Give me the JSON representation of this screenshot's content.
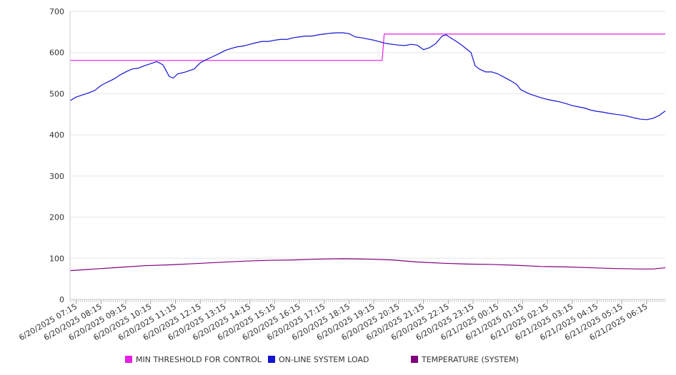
{
  "chart_data": {
    "type": "line",
    "title": "",
    "xlabel": "",
    "ylabel": "",
    "ylim": [
      0,
      700
    ],
    "y_ticks": [
      0,
      100,
      200,
      300,
      400,
      500,
      600,
      700
    ],
    "grid": "horizontal",
    "legend_position": "bottom",
    "x_range": [
      "6/20/2025 07:00",
      "6/21/2025 07:00"
    ],
    "x_tick_labels": [
      "6/20/2025 07:15",
      "6/20/2025 08:15",
      "6/20/2025 09:15",
      "6/20/2025 10:15",
      "6/20/2025 11:15",
      "6/20/2025 12:15",
      "6/20/2025 13:15",
      "6/20/2025 14:15",
      "6/20/2025 15:15",
      "6/20/2025 16:15",
      "6/20/2025 17:15",
      "6/20/2025 18:15",
      "6/20/2025 19:15",
      "6/20/2025 20:15",
      "6/20/2025 21:15",
      "6/20/2025 22:15",
      "6/20/2025 23:15",
      "6/21/2025 00:15",
      "6/21/2025 01:15",
      "6/21/2025 02:15",
      "6/21/2025 03:15",
      "6/21/2025 04:15",
      "6/21/2025 05:15",
      "6/21/2025 06:15"
    ],
    "series": [
      {
        "name": "MIN THRESHOLD FOR CONTROL",
        "color": "#e61ee6",
        "points": [
          [
            "6/20/2025 07:00",
            581
          ],
          [
            "6/20/2025 19:35",
            581
          ],
          [
            "6/20/2025 19:40",
            645
          ],
          [
            "6/21/2025 07:00",
            645
          ]
        ]
      },
      {
        "name": "ON-LINE SYSTEM LOAD",
        "color": "#1414d2",
        "points": [
          [
            "6/20/2025 07:00",
            483
          ],
          [
            "6/20/2025 07:15",
            492
          ],
          [
            "6/20/2025 07:30",
            497
          ],
          [
            "6/20/2025 07:45",
            502
          ],
          [
            "6/20/2025 08:00",
            508
          ],
          [
            "6/20/2025 08:15",
            520
          ],
          [
            "6/20/2025 08:30",
            528
          ],
          [
            "6/20/2025 08:45",
            535
          ],
          [
            "6/20/2025 09:00",
            545
          ],
          [
            "6/20/2025 09:15",
            553
          ],
          [
            "6/20/2025 09:30",
            560
          ],
          [
            "6/20/2025 09:45",
            562
          ],
          [
            "6/20/2025 10:00",
            568
          ],
          [
            "6/20/2025 10:15",
            573
          ],
          [
            "6/20/2025 10:30",
            578
          ],
          [
            "6/20/2025 10:45",
            570
          ],
          [
            "6/20/2025 11:00",
            542
          ],
          [
            "6/20/2025 11:10",
            538
          ],
          [
            "6/20/2025 11:20",
            548
          ],
          [
            "6/20/2025 11:40",
            553
          ],
          [
            "6/20/2025 12:00",
            560
          ],
          [
            "6/20/2025 12:15",
            575
          ],
          [
            "6/20/2025 12:30",
            583
          ],
          [
            "6/20/2025 12:45",
            590
          ],
          [
            "6/20/2025 13:00",
            597
          ],
          [
            "6/20/2025 13:15",
            605
          ],
          [
            "6/20/2025 13:30",
            610
          ],
          [
            "6/20/2025 13:45",
            614
          ],
          [
            "6/20/2025 14:00",
            616
          ],
          [
            "6/20/2025 14:15",
            620
          ],
          [
            "6/20/2025 14:30",
            624
          ],
          [
            "6/20/2025 14:45",
            627
          ],
          [
            "6/20/2025 15:00",
            627
          ],
          [
            "6/20/2025 15:15",
            630
          ],
          [
            "6/20/2025 15:30",
            632
          ],
          [
            "6/20/2025 15:45",
            632
          ],
          [
            "6/20/2025 16:00",
            636
          ],
          [
            "6/20/2025 16:15",
            638
          ],
          [
            "6/20/2025 16:30",
            640
          ],
          [
            "6/20/2025 16:45",
            640
          ],
          [
            "6/20/2025 17:00",
            643
          ],
          [
            "6/20/2025 17:15",
            645
          ],
          [
            "6/20/2025 17:30",
            647
          ],
          [
            "6/20/2025 17:45",
            648
          ],
          [
            "6/20/2025 18:00",
            648
          ],
          [
            "6/20/2025 18:15",
            646
          ],
          [
            "6/20/2025 18:30",
            638
          ],
          [
            "6/20/2025 18:45",
            636
          ],
          [
            "6/20/2025 19:00",
            633
          ],
          [
            "6/20/2025 19:15",
            630
          ],
          [
            "6/20/2025 19:30",
            626
          ],
          [
            "6/20/2025 19:45",
            622
          ],
          [
            "6/20/2025 20:00",
            620
          ],
          [
            "6/20/2025 20:15",
            618
          ],
          [
            "6/20/2025 20:30",
            617
          ],
          [
            "6/20/2025 20:45",
            620
          ],
          [
            "6/20/2025 21:00",
            618
          ],
          [
            "6/20/2025 21:15",
            607
          ],
          [
            "6/20/2025 21:30",
            612
          ],
          [
            "6/20/2025 21:45",
            622
          ],
          [
            "6/20/2025 22:00",
            640
          ],
          [
            "6/20/2025 22:10",
            643
          ],
          [
            "6/20/2025 22:20",
            636
          ],
          [
            "6/20/2025 22:30",
            630
          ],
          [
            "6/20/2025 22:45",
            620
          ],
          [
            "6/20/2025 23:00",
            608
          ],
          [
            "6/20/2025 23:10",
            600
          ],
          [
            "6/20/2025 23:20",
            568
          ],
          [
            "6/20/2025 23:30",
            560
          ],
          [
            "6/20/2025 23:45",
            553
          ],
          [
            "6/21/2025 00:00",
            553
          ],
          [
            "6/21/2025 00:15",
            548
          ],
          [
            "6/21/2025 00:30",
            540
          ],
          [
            "6/21/2025 00:45",
            532
          ],
          [
            "6/21/2025 01:00",
            523
          ],
          [
            "6/21/2025 01:10",
            510
          ],
          [
            "6/21/2025 01:20",
            505
          ],
          [
            "6/21/2025 01:30",
            500
          ],
          [
            "6/21/2025 01:45",
            495
          ],
          [
            "6/21/2025 02:00",
            490
          ],
          [
            "6/21/2025 02:15",
            486
          ],
          [
            "6/21/2025 02:30",
            483
          ],
          [
            "6/21/2025 02:45",
            480
          ],
          [
            "6/21/2025 03:00",
            476
          ],
          [
            "6/21/2025 03:15",
            471
          ],
          [
            "6/21/2025 03:30",
            468
          ],
          [
            "6/21/2025 03:45",
            465
          ],
          [
            "6/21/2025 04:00",
            460
          ],
          [
            "6/21/2025 04:15",
            457
          ],
          [
            "6/21/2025 04:30",
            455
          ],
          [
            "6/21/2025 04:45",
            452
          ],
          [
            "6/21/2025 05:00",
            450
          ],
          [
            "6/21/2025 05:15",
            448
          ],
          [
            "6/21/2025 05:30",
            445
          ],
          [
            "6/21/2025 05:45",
            441
          ],
          [
            "6/21/2025 06:00",
            438
          ],
          [
            "6/21/2025 06:15",
            437
          ],
          [
            "6/21/2025 06:30",
            440
          ],
          [
            "6/21/2025 06:45",
            447
          ],
          [
            "6/21/2025 07:00",
            458
          ]
        ]
      },
      {
        "name": "TEMPERATURE (SYSTEM)",
        "color": "#800080",
        "points": [
          [
            "6/20/2025 07:00",
            70
          ],
          [
            "6/20/2025 08:00",
            74
          ],
          [
            "6/20/2025 09:00",
            78
          ],
          [
            "6/20/2025 10:00",
            82
          ],
          [
            "6/20/2025 11:00",
            84
          ],
          [
            "6/20/2025 12:00",
            87
          ],
          [
            "6/20/2025 13:00",
            90
          ],
          [
            "6/20/2025 14:00",
            93
          ],
          [
            "6/20/2025 15:00",
            95
          ],
          [
            "6/20/2025 16:00",
            96
          ],
          [
            "6/20/2025 17:00",
            98
          ],
          [
            "6/20/2025 18:00",
            99
          ],
          [
            "6/20/2025 19:00",
            98
          ],
          [
            "6/20/2025 20:00",
            96
          ],
          [
            "6/20/2025 21:00",
            91
          ],
          [
            "6/20/2025 22:00",
            88
          ],
          [
            "6/20/2025 23:00",
            86
          ],
          [
            "6/21/2025 00:00",
            85
          ],
          [
            "6/21/2025 01:00",
            83
          ],
          [
            "6/21/2025 02:00",
            80
          ],
          [
            "6/21/2025 03:00",
            79
          ],
          [
            "6/21/2025 04:00",
            77
          ],
          [
            "6/21/2025 05:00",
            75
          ],
          [
            "6/21/2025 06:00",
            74
          ],
          [
            "6/21/2025 06:30",
            74
          ],
          [
            "6/21/2025 07:00",
            77
          ]
        ]
      }
    ]
  }
}
